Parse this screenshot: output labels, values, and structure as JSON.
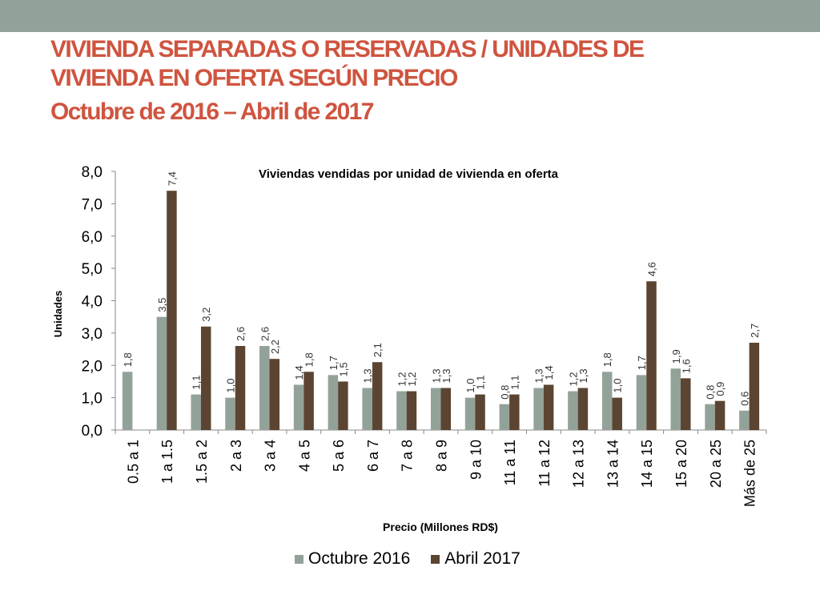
{
  "slide": {
    "title_line1": "VIVIENDA SEPARADAS O RESERVADAS / UNIDADES DE",
    "title_line2": "VIVIENDA EN OFERTA SEGÚN PRECIO",
    "subtitle": "Octubre de 2016 – Abril de 2017"
  },
  "colors": {
    "top_bar": "#93a299",
    "title": "#cf543f",
    "series_oct": "#93a299",
    "series_abr": "#5b4532"
  },
  "chart_data": {
    "type": "bar",
    "title": "Viviendas vendidas por unidad de vivienda en oferta",
    "xlabel": "Precio (Millones RD$)",
    "ylabel": "Unidades",
    "ylim": [
      0,
      8
    ],
    "yticks": [
      "0,0",
      "1,0",
      "2,0",
      "3,0",
      "4,0",
      "5,0",
      "6,0",
      "7,0",
      "8,0"
    ],
    "categories": [
      "0.5 a 1",
      "1 a 1.5",
      "1.5 a 2",
      "2 a 3",
      "3 a 4",
      "4 a 5",
      "5 a 6",
      "6 a 7",
      "7 a 8",
      "8 a 9",
      "9 a 10",
      "11 a 11",
      "11 a 12",
      "12 a 13",
      "13 a 14",
      "14 a 15",
      "15 a 20",
      "20 a 25",
      "Más de 25"
    ],
    "series": [
      {
        "name": "Octubre 2016",
        "values": [
          1.8,
          3.5,
          1.1,
          1.0,
          2.6,
          1.4,
          1.7,
          1.3,
          1.2,
          1.3,
          1.0,
          0.8,
          1.3,
          1.2,
          1.8,
          1.7,
          1.9,
          0.8,
          0.6
        ],
        "labels": [
          "1,8",
          "3,5",
          "1,1",
          "1,0",
          "2,6",
          "1,4",
          "1,7",
          "1,3",
          "1,2",
          "1,3",
          "1,0",
          "0,8",
          "1,3",
          "1,2",
          "1,8",
          "1,7",
          "1,9",
          "0,8",
          "0,6"
        ]
      },
      {
        "name": "Abril 2017",
        "values": [
          null,
          7.4,
          3.2,
          2.6,
          2.2,
          1.8,
          1.5,
          2.1,
          1.2,
          1.3,
          1.1,
          1.1,
          1.4,
          1.3,
          1.0,
          4.6,
          1.6,
          0.9,
          2.7
        ],
        "labels": [
          "",
          "7,4",
          "3,2",
          "2,6",
          "2,2",
          "1,8",
          "1,5",
          "2,1",
          "1,2",
          "1,3",
          "1,1",
          "1,1",
          "1,4",
          "1,3",
          "1,0",
          "4,6",
          "1,6",
          "0,9",
          "2,7"
        ]
      }
    ],
    "legend_position": "bottom",
    "grid": false
  }
}
